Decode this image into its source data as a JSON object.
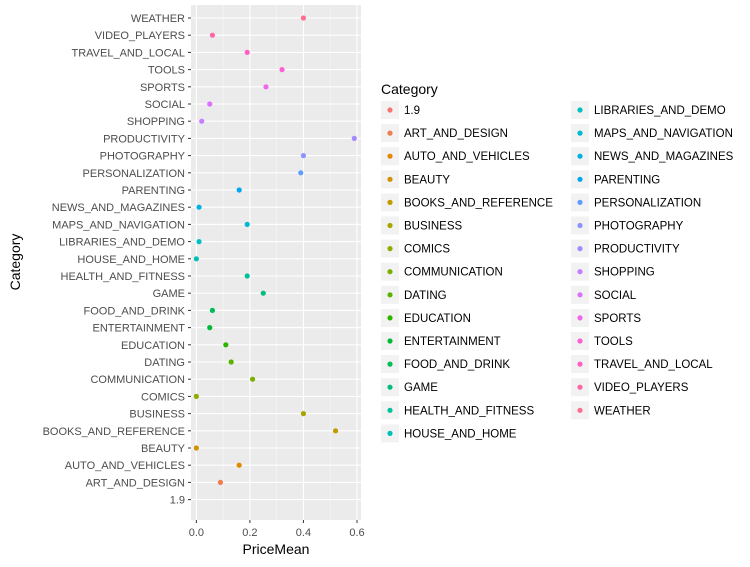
{
  "chart_data": {
    "type": "scatter",
    "xlabel": "PriceMean",
    "ylabel": "Category",
    "xlim": [
      -0.02,
      0.615
    ],
    "x_ticks": [
      "0.0",
      "0.2",
      "0.4",
      "0.6"
    ],
    "x_tick_values": [
      0,
      0.2,
      0.4,
      0.6
    ],
    "grid": true,
    "legend_title": "Category",
    "legend_position": "right",
    "categories": [
      "1.9",
      "ART_AND_DESIGN",
      "AUTO_AND_VEHICLES",
      "BEAUTY",
      "BOOKS_AND_REFERENCE",
      "BUSINESS",
      "COMICS",
      "COMMUNICATION",
      "DATING",
      "EDUCATION",
      "ENTERTAINMENT",
      "FOOD_AND_DRINK",
      "GAME",
      "HEALTH_AND_FITNESS",
      "HOUSE_AND_HOME",
      "LIBRARIES_AND_DEMO",
      "MAPS_AND_NAVIGATION",
      "NEWS_AND_MAGAZINES",
      "PARENTING",
      "PERSONALIZATION",
      "PHOTOGRAPHY",
      "PRODUCTIVITY",
      "SHOPPING",
      "SOCIAL",
      "SPORTS",
      "TOOLS",
      "TRAVEL_AND_LOCAL",
      "VIDEO_PLAYERS",
      "WEATHER"
    ],
    "points": [
      {
        "category": "ART_AND_DESIGN",
        "x": 0.09
      },
      {
        "category": "AUTO_AND_VEHICLES",
        "x": 0.16
      },
      {
        "category": "BEAUTY",
        "x": 0.0
      },
      {
        "category": "BOOKS_AND_REFERENCE",
        "x": 0.52
      },
      {
        "category": "BUSINESS",
        "x": 0.4
      },
      {
        "category": "COMICS",
        "x": 0.0
      },
      {
        "category": "COMMUNICATION",
        "x": 0.21
      },
      {
        "category": "DATING",
        "x": 0.13
      },
      {
        "category": "EDUCATION",
        "x": 0.11
      },
      {
        "category": "ENTERTAINMENT",
        "x": 0.05
      },
      {
        "category": "FOOD_AND_DRINK",
        "x": 0.06
      },
      {
        "category": "GAME",
        "x": 0.25
      },
      {
        "category": "HEALTH_AND_FITNESS",
        "x": 0.19
      },
      {
        "category": "HOUSE_AND_HOME",
        "x": 0.0
      },
      {
        "category": "LIBRARIES_AND_DEMO",
        "x": 0.01
      },
      {
        "category": "MAPS_AND_NAVIGATION",
        "x": 0.19
      },
      {
        "category": "NEWS_AND_MAGAZINES",
        "x": 0.01
      },
      {
        "category": "PARENTING",
        "x": 0.16
      },
      {
        "category": "PERSONALIZATION",
        "x": 0.39
      },
      {
        "category": "PHOTOGRAPHY",
        "x": 0.4
      },
      {
        "category": "PRODUCTIVITY",
        "x": 0.59
      },
      {
        "category": "SHOPPING",
        "x": 0.02
      },
      {
        "category": "SOCIAL",
        "x": 0.05
      },
      {
        "category": "SPORTS",
        "x": 0.26
      },
      {
        "category": "TOOLS",
        "x": 0.32
      },
      {
        "category": "TRAVEL_AND_LOCAL",
        "x": 0.19
      },
      {
        "category": "VIDEO_PLAYERS",
        "x": 0.06
      },
      {
        "category": "WEATHER",
        "x": 0.4
      }
    ],
    "colors": {
      "1.9": "#F8766D",
      "ART_AND_DESIGN": "#F17E4E",
      "AUTO_AND_VEHICLES": "#E38900",
      "BEAUTY": "#D29200",
      "BOOKS_AND_REFERENCE": "#C09B00",
      "BUSINESS": "#ABA300",
      "COMICS": "#93AA00",
      "COMMUNICATION": "#7AAF00",
      "DATING": "#5BB300",
      "EDUCATION": "#2DB600",
      "ENTERTAINMENT": "#00BA38",
      "FOOD_AND_DRINK": "#00BC59",
      "GAME": "#00BF7D",
      "HEALTH_AND_FITNESS": "#00C19C",
      "HOUSE_AND_HOME": "#00C0B5",
      "LIBRARIES_AND_DEMO": "#00BFC4",
      "MAPS_AND_NAVIGATION": "#00BAD5",
      "NEWS_AND_MAGAZINES": "#00B2E2",
      "PARENTING": "#00A8F0",
      "PERSONALIZATION": "#619CFF",
      "PHOTOGRAPHY": "#8B93FF",
      "PRODUCTIVITY": "#A58AFF",
      "SHOPPING": "#C77CFF",
      "SOCIAL": "#DC71FA",
      "SPORTS": "#EF67EB",
      "TOOLS": "#FB61D7",
      "TRAVEL_AND_LOCAL": "#FF61C3",
      "VIDEO_PLAYERS": "#FF66A8",
      "WEATHER": "#FC6F8F"
    }
  }
}
